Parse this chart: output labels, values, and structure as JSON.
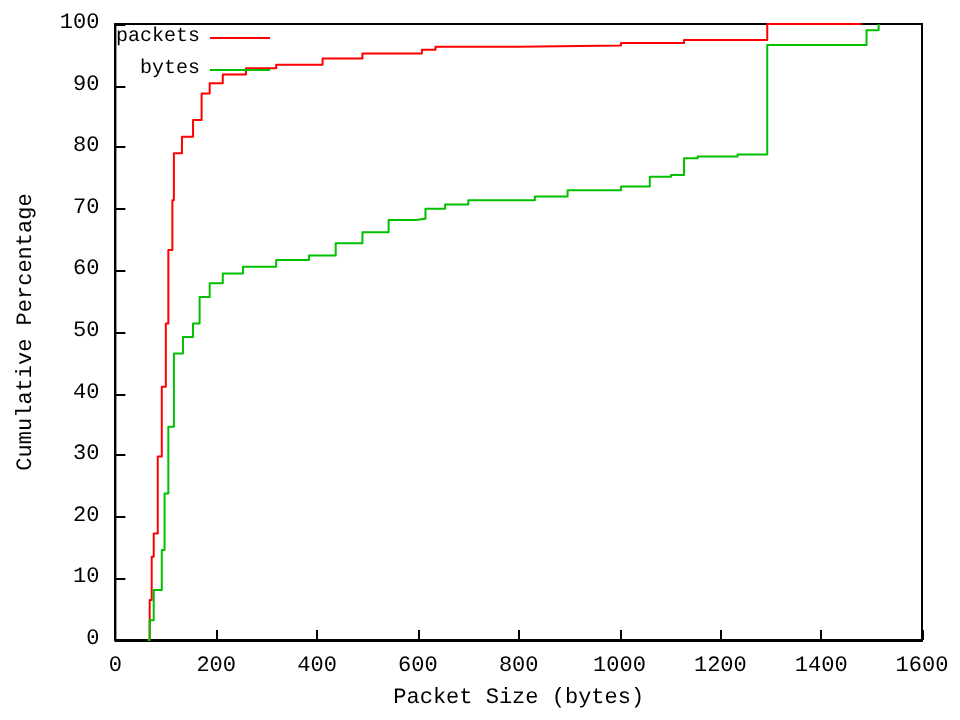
{
  "chart_data": {
    "type": "step",
    "xlabel": "Packet Size (bytes)",
    "ylabel": "Cumulative Percentage",
    "xlim": [
      0,
      1600
    ],
    "xticks": [
      0,
      200,
      400,
      600,
      800,
      1000,
      1200,
      1400,
      1600
    ],
    "ylim": [
      0,
      100
    ],
    "yticks": [
      0,
      10,
      20,
      30,
      40,
      50,
      60,
      70,
      80,
      90,
      100
    ],
    "grid": false,
    "legend": "top left",
    "marker": "none",
    "series": [
      {
        "name": "packets",
        "color": "#ff0000",
        "x": [
          64,
          68,
          72,
          76,
          84,
          92,
          100,
          105,
          113,
          116,
          132,
          154,
          171,
          187,
          213,
          259,
          319,
          411,
          490,
          608,
          635,
          799,
          1003,
          1128,
          1293,
          1480
        ],
        "values": [
          0,
          6.5,
          13.5,
          17.3,
          29.8,
          41.1,
          51.4,
          63.3,
          71.4,
          79,
          81.7,
          84.4,
          88.7,
          90.4,
          91.8,
          92.8,
          93.4,
          94.4,
          95.2,
          95.8,
          96.3,
          96.5,
          96.9,
          97.4,
          100,
          100
        ]
      },
      {
        "name": "bytes",
        "color": "#00c000",
        "x": [
          64,
          68,
          76,
          84,
          92,
          97.5,
          105,
          116,
          134,
          154,
          167,
          187,
          213,
          253,
          319,
          384,
          437,
          490,
          542,
          595,
          615,
          654,
          700,
          832,
          897,
          1003,
          1060,
          1102,
          1128,
          1155,
          1234,
          1293,
          1471,
          1490,
          1514
        ],
        "values": [
          0,
          3.2,
          8.1,
          8.1,
          14.6,
          23.8,
          34.6,
          46.5,
          49.2,
          51.4,
          55.7,
          57.9,
          59.5,
          60.6,
          61.7,
          62.4,
          64.4,
          66.2,
          68.2,
          68.4,
          70,
          70.7,
          71.4,
          72,
          73,
          73.6,
          75.2,
          75.5,
          78.2,
          78.5,
          78.8,
          96.6,
          96.6,
          99,
          100
        ]
      }
    ]
  }
}
